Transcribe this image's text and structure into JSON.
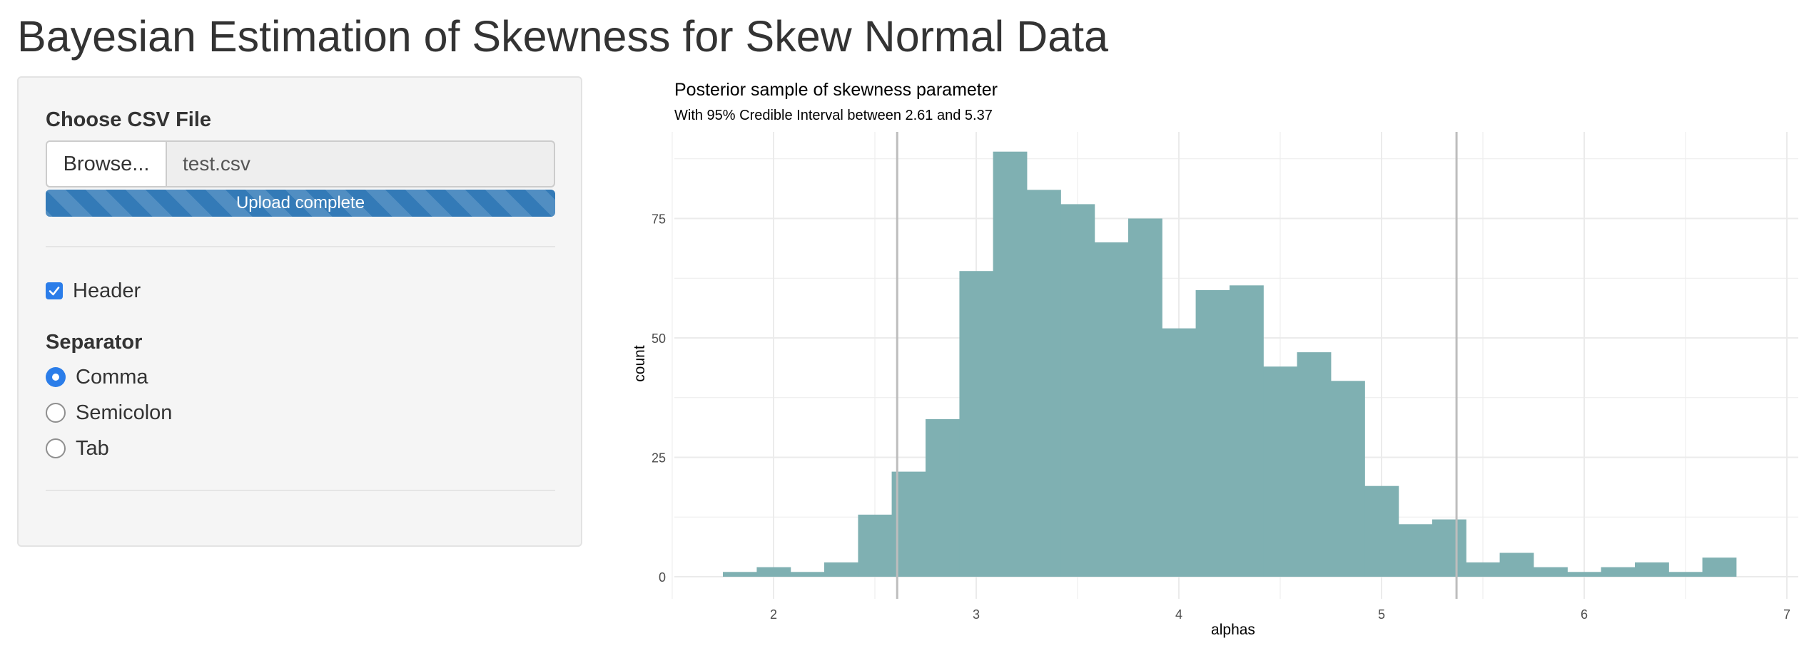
{
  "page": {
    "title": "Bayesian Estimation of Skewness for Skew Normal Data"
  },
  "sidebar": {
    "file_input": {
      "label": "Choose CSV File",
      "button_label": "Browse...",
      "file_name": "test.csv",
      "progress_text": "Upload complete",
      "progress_fraction": 1.0
    },
    "header_checkbox": {
      "label": "Header",
      "checked": true
    },
    "separator": {
      "label": "Separator",
      "options": [
        {
          "label": "Comma",
          "selected": true
        },
        {
          "label": "Semicolon",
          "selected": false
        },
        {
          "label": "Tab",
          "selected": false
        }
      ]
    }
  },
  "colors": {
    "bar_fill": "#7fb0b2",
    "accent": "#2b7de9",
    "progress": "#337ab7",
    "grid": "#ebebeb",
    "vline": "#bdbdbd"
  },
  "chart_data": {
    "type": "bar",
    "title": "Posterior sample of skewness parameter",
    "subtitle": "With 95% Credible Interval between 2.61 and 5.37",
    "xlabel": "alphas",
    "ylabel": "count",
    "xlim": [
      1.5,
      7.0
    ],
    "ylim": [
      0,
      90
    ],
    "x_ticks": [
      2,
      3,
      4,
      5,
      6,
      7
    ],
    "y_ticks": [
      0,
      25,
      50,
      75
    ],
    "bin_width": 0.1667,
    "bins": [
      {
        "x0": 1.75,
        "count": 1
      },
      {
        "x0": 1.917,
        "count": 2
      },
      {
        "x0": 2.083,
        "count": 1
      },
      {
        "x0": 2.25,
        "count": 3
      },
      {
        "x0": 2.417,
        "count": 13
      },
      {
        "x0": 2.583,
        "count": 22
      },
      {
        "x0": 2.75,
        "count": 33
      },
      {
        "x0": 2.917,
        "count": 64
      },
      {
        "x0": 3.083,
        "count": 89
      },
      {
        "x0": 3.25,
        "count": 81
      },
      {
        "x0": 3.417,
        "count": 78
      },
      {
        "x0": 3.583,
        "count": 70
      },
      {
        "x0": 3.75,
        "count": 75
      },
      {
        "x0": 3.917,
        "count": 52
      },
      {
        "x0": 4.083,
        "count": 60
      },
      {
        "x0": 4.25,
        "count": 61
      },
      {
        "x0": 4.417,
        "count": 44
      },
      {
        "x0": 4.583,
        "count": 47
      },
      {
        "x0": 4.75,
        "count": 41
      },
      {
        "x0": 4.917,
        "count": 19
      },
      {
        "x0": 5.083,
        "count": 11
      },
      {
        "x0": 5.25,
        "count": 12
      },
      {
        "x0": 5.417,
        "count": 3
      },
      {
        "x0": 5.583,
        "count": 5
      },
      {
        "x0": 5.75,
        "count": 2
      },
      {
        "x0": 5.917,
        "count": 1
      },
      {
        "x0": 6.083,
        "count": 2
      },
      {
        "x0": 6.25,
        "count": 3
      },
      {
        "x0": 6.417,
        "count": 1
      },
      {
        "x0": 6.583,
        "count": 4
      }
    ],
    "credible_interval": [
      2.61,
      5.37
    ],
    "grid": true
  }
}
